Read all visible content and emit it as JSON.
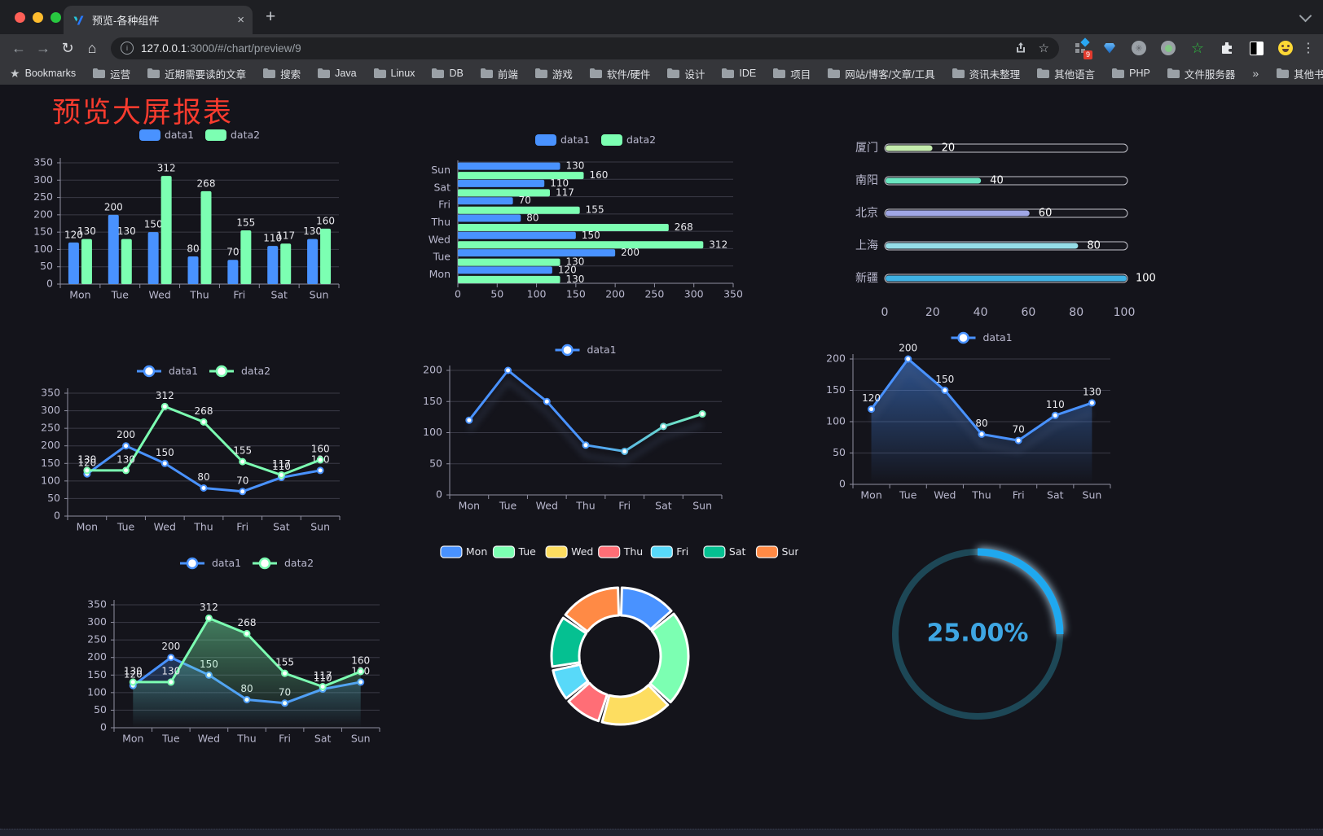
{
  "browser": {
    "tab": {
      "title": "预览-各种组件",
      "close_glyph": "×",
      "new_tab_glyph": "+"
    },
    "address": {
      "host": "127.0.0.1",
      "rest": ":3000/#/chart/preview/9",
      "info_glyph": "i"
    },
    "extension_badge": "9",
    "menu_dots_glyph": "⋮",
    "bookmarks_root_label": "Bookmarks",
    "bookmarks": [
      "运营",
      "近期需要读的文章",
      "搜索",
      "Java",
      "Linux",
      "DB",
      "前端",
      "游戏",
      "软件/硬件",
      "设计",
      "IDE",
      "项目",
      "网站/博客/文章/工具",
      "资讯未整理",
      "其他语言",
      "PHP",
      "文件服务器"
    ],
    "bookmarks_overflow_glyph": "»",
    "other_bookmarks_label": "其他书签"
  },
  "page": {
    "title": "预览大屏报表",
    "title_color": "#f83b2e"
  },
  "theme": {
    "axis_text": "#b9b8ce",
    "grid": "#3a3a46",
    "axis_line": "#8f8fa0",
    "value_label": "#e9e9ee",
    "legend_text": "#b9b8ce",
    "pie_legend_text": "#e6e6ec",
    "series_blue": "#4992ff",
    "series_green": "#7cffb2"
  },
  "chart_data": [
    {
      "id": "c1",
      "type": "bar",
      "categories": [
        "Mon",
        "Tue",
        "Wed",
        "Thu",
        "Fri",
        "Sat",
        "Sun"
      ],
      "series": [
        {
          "name": "data1",
          "color": "#4992ff",
          "values": [
            120,
            200,
            150,
            80,
            70,
            110,
            130
          ]
        },
        {
          "name": "data2",
          "color": "#7cffb2",
          "values": [
            130,
            130,
            312,
            268,
            155,
            117,
            160
          ]
        }
      ],
      "ylim": [
        0,
        350
      ],
      "ytick": 50
    },
    {
      "id": "c2",
      "type": "hbar",
      "categories": [
        "Mon",
        "Tue",
        "Wed",
        "Thu",
        "Fri",
        "Sat",
        "Sun"
      ],
      "series": [
        {
          "name": "data1",
          "color": "#4992ff",
          "values": [
            120,
            200,
            150,
            80,
            70,
            110,
            130
          ]
        },
        {
          "name": "data2",
          "color": "#7cffb2",
          "values": [
            130,
            130,
            312,
            268,
            155,
            117,
            160
          ]
        }
      ],
      "xlim": [
        0,
        350
      ],
      "xtick": 50
    },
    {
      "id": "c3",
      "type": "progress",
      "xlim": [
        0,
        100
      ],
      "xticks": [
        0,
        20,
        40,
        60,
        80,
        100
      ],
      "rows": [
        {
          "label": "厦门",
          "value": 20,
          "color": "#c4ebad"
        },
        {
          "label": "南阳",
          "value": 40,
          "color": "#6be6c1"
        },
        {
          "label": "北京",
          "value": 60,
          "color": "#a0a7e6"
        },
        {
          "label": "上海",
          "value": 80,
          "color": "#96dee8"
        },
        {
          "label": "新疆",
          "value": 100,
          "color": "#3fb1e3"
        }
      ]
    },
    {
      "id": "c4",
      "type": "line",
      "categories": [
        "Mon",
        "Tue",
        "Wed",
        "Thu",
        "Fri",
        "Sat",
        "Sun"
      ],
      "series": [
        {
          "name": "data1",
          "color": "#4992ff",
          "values": [
            120,
            200,
            150,
            80,
            70,
            110,
            130
          ],
          "labels": true
        },
        {
          "name": "data2",
          "color": "#7cffb2",
          "values": [
            130,
            130,
            312,
            268,
            155,
            117,
            160
          ],
          "labels": true
        }
      ],
      "ylim": [
        0,
        350
      ],
      "ytick": 50
    },
    {
      "id": "c5",
      "type": "line",
      "categories": [
        "Mon",
        "Tue",
        "Wed",
        "Thu",
        "Fri",
        "Sat",
        "Sun"
      ],
      "series": [
        {
          "name": "data1",
          "color": "#4992ff",
          "gradient": [
            "#4992ff",
            "#7cffb2"
          ],
          "values": [
            120,
            200,
            150,
            80,
            70,
            110,
            130
          ],
          "labels": false,
          "shadow": true
        }
      ],
      "ylim": [
        0,
        200
      ],
      "ytick": 50
    },
    {
      "id": "c6",
      "type": "line",
      "categories": [
        "Mon",
        "Tue",
        "Wed",
        "Thu",
        "Fri",
        "Sat",
        "Sun"
      ],
      "series": [
        {
          "name": "data1",
          "color": "#4992ff",
          "values": [
            120,
            200,
            150,
            80,
            70,
            110,
            130
          ],
          "labels": true,
          "area": true,
          "shadow": true
        }
      ],
      "ylim": [
        0,
        200
      ],
      "ytick": 50
    },
    {
      "id": "c7",
      "type": "line",
      "categories": [
        "Mon",
        "Tue",
        "Wed",
        "Thu",
        "Fri",
        "Sat",
        "Sun"
      ],
      "series": [
        {
          "name": "data1",
          "color": "#4992ff",
          "values": [
            120,
            200,
            150,
            80,
            70,
            110,
            130
          ],
          "labels": true,
          "area": true
        },
        {
          "name": "data2",
          "color": "#7cffb2",
          "values": [
            130,
            130,
            312,
            268,
            155,
            117,
            160
          ],
          "labels": true,
          "area": true
        }
      ],
      "ylim": [
        0,
        350
      ],
      "ytick": 50
    },
    {
      "id": "c8",
      "type": "pie",
      "items": [
        {
          "label": "Mon",
          "value": 120,
          "color": "#4992ff"
        },
        {
          "label": "Tue",
          "value": 200,
          "color": "#7cffb2"
        },
        {
          "label": "Wed",
          "value": 150,
          "color": "#fddd60"
        },
        {
          "label": "Thu",
          "value": 80,
          "color": "#ff6e76"
        },
        {
          "label": "Fri",
          "value": 70,
          "color": "#58d9f9"
        },
        {
          "label": "Sat",
          "value": 110,
          "color": "#05c091"
        },
        {
          "label": "Sun",
          "value": 130,
          "color": "#ff8a45"
        }
      ]
    },
    {
      "id": "c9",
      "type": "gauge",
      "value": 25,
      "text": "25.00%",
      "progress_color": "#1fa8ef",
      "track_color": "#1d4756",
      "text_color": "#3ea6e3",
      "glow_color": "#bfe7ff"
    }
  ]
}
